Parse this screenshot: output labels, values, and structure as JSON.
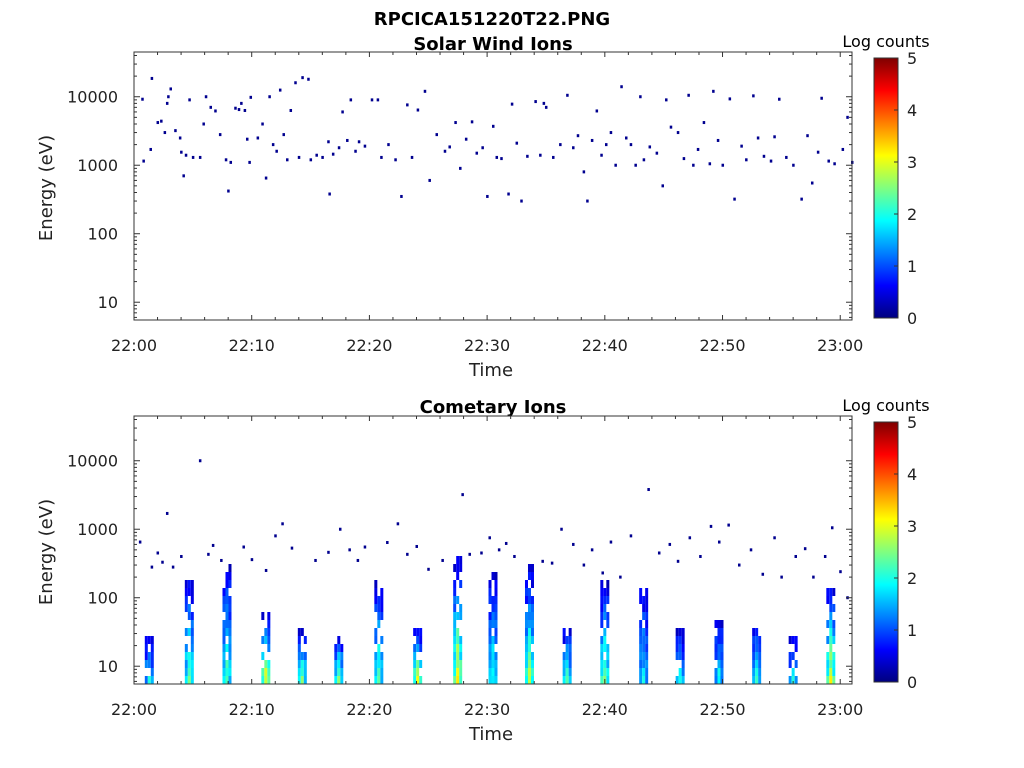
{
  "figure": {
    "title": "RPCICA151220T22.PNG"
  },
  "chart_data": [
    {
      "type": "heatmap",
      "title": "Solar Wind Ions",
      "xlabel": "Time",
      "ylabel": "Energy (eV)",
      "x_ticks": [
        "22:00",
        "22:10",
        "22:20",
        "22:30",
        "22:40",
        "22:50",
        "23:00"
      ],
      "x_range_minutes": [
        0,
        61
      ],
      "y_ticks": [
        "10",
        "100",
        "1000",
        "10000"
      ],
      "y_scale": "log",
      "y_range": [
        5.5,
        45000
      ],
      "colorbar": {
        "label": "Log counts",
        "ticks": [
          "0",
          "1",
          "2",
          "3",
          "4",
          "5"
        ],
        "range": [
          0,
          5
        ],
        "colormap": "jet"
      },
      "points": [
        [
          0.8,
          1150
        ],
        [
          0.7,
          9200
        ],
        [
          1.5,
          18500
        ],
        [
          2.0,
          4200
        ],
        [
          2.3,
          4400
        ],
        [
          2.6,
          3000
        ],
        [
          2.8,
          8000
        ],
        [
          2.9,
          10000
        ],
        [
          3.1,
          13000
        ],
        [
          3.5,
          3200
        ],
        [
          1.4,
          1700
        ],
        [
          3.9,
          2500
        ],
        [
          4.0,
          1550
        ],
        [
          4.2,
          700
        ],
        [
          4.4,
          1400
        ],
        [
          4.7,
          9000
        ],
        [
          5.0,
          1300
        ],
        [
          5.6,
          1300
        ],
        [
          5.9,
          4000
        ],
        [
          6.1,
          10000
        ],
        [
          6.5,
          7000
        ],
        [
          6.9,
          6200
        ],
        [
          7.3,
          2800
        ],
        [
          7.8,
          1200
        ],
        [
          8.0,
          420
        ],
        [
          8.2,
          1100
        ],
        [
          8.6,
          6800
        ],
        [
          8.9,
          6500
        ],
        [
          9.1,
          8000
        ],
        [
          9.4,
          6300
        ],
        [
          9.6,
          2400
        ],
        [
          9.8,
          1100
        ],
        [
          9.9,
          9800
        ],
        [
          10.5,
          2500
        ],
        [
          10.9,
          4000
        ],
        [
          11.2,
          650
        ],
        [
          11.5,
          10000
        ],
        [
          11.8,
          2000
        ],
        [
          12.1,
          1600
        ],
        [
          12.4,
          12500
        ],
        [
          12.7,
          2800
        ],
        [
          13.0,
          1200
        ],
        [
          13.3,
          6300
        ],
        [
          13.7,
          16000
        ],
        [
          14.0,
          1300
        ],
        [
          14.3,
          19000
        ],
        [
          14.8,
          18000
        ],
        [
          15.0,
          1200
        ],
        [
          15.5,
          1400
        ],
        [
          16.0,
          1300
        ],
        [
          16.5,
          2200
        ],
        [
          16.6,
          380
        ],
        [
          16.9,
          1450
        ],
        [
          17.4,
          1800
        ],
        [
          17.7,
          6000
        ],
        [
          18.1,
          2300
        ],
        [
          18.4,
          9000
        ],
        [
          18.8,
          1600
        ],
        [
          19.1,
          2200
        ],
        [
          19.6,
          1900
        ],
        [
          20.2,
          9000
        ],
        [
          20.7,
          9000
        ],
        [
          21.0,
          1300
        ],
        [
          21.6,
          2000
        ],
        [
          22.2,
          1200
        ],
        [
          22.7,
          350
        ],
        [
          23.2,
          7600
        ],
        [
          23.6,
          1300
        ],
        [
          24.1,
          6400
        ],
        [
          24.7,
          12000
        ],
        [
          25.1,
          600
        ],
        [
          25.7,
          2800
        ],
        [
          26.4,
          1600
        ],
        [
          26.8,
          1850
        ],
        [
          27.3,
          4200
        ],
        [
          27.7,
          900
        ],
        [
          28.2,
          2400
        ],
        [
          28.7,
          4300
        ],
        [
          29.1,
          1500
        ],
        [
          29.6,
          1800
        ],
        [
          30.0,
          350
        ],
        [
          30.5,
          3700
        ],
        [
          30.8,
          1300
        ],
        [
          31.2,
          1250
        ],
        [
          31.8,
          380
        ],
        [
          32.1,
          7800
        ],
        [
          32.5,
          2100
        ],
        [
          32.9,
          300
        ],
        [
          33.4,
          1350
        ],
        [
          34.1,
          8500
        ],
        [
          34.5,
          1400
        ],
        [
          34.8,
          8000
        ],
        [
          35.0,
          7000
        ],
        [
          35.6,
          1300
        ],
        [
          36.2,
          2000
        ],
        [
          36.8,
          10500
        ],
        [
          37.3,
          1800
        ],
        [
          37.7,
          2700
        ],
        [
          38.2,
          800
        ],
        [
          38.5,
          300
        ],
        [
          38.9,
          2300
        ],
        [
          39.3,
          6200
        ],
        [
          39.7,
          1400
        ],
        [
          40.1,
          2000
        ],
        [
          40.5,
          3000
        ],
        [
          40.9,
          1000
        ],
        [
          41.4,
          14000
        ],
        [
          41.8,
          2500
        ],
        [
          42.2,
          2000
        ],
        [
          42.6,
          1000
        ],
        [
          43.0,
          10000
        ],
        [
          43.3,
          1200
        ],
        [
          43.8,
          1850
        ],
        [
          44.4,
          1500
        ],
        [
          44.9,
          500
        ],
        [
          45.2,
          9000
        ],
        [
          45.6,
          3600
        ],
        [
          46.2,
          3000
        ],
        [
          46.7,
          1250
        ],
        [
          47.1,
          10500
        ],
        [
          47.5,
          1000
        ],
        [
          47.9,
          1700
        ],
        [
          48.4,
          4200
        ],
        [
          48.9,
          1050
        ],
        [
          49.2,
          12000
        ],
        [
          49.6,
          2300
        ],
        [
          50.0,
          1000
        ],
        [
          50.6,
          9300
        ],
        [
          51.0,
          320
        ],
        [
          51.6,
          1900
        ],
        [
          52.0,
          1200
        ],
        [
          52.6,
          10300
        ],
        [
          53.0,
          2500
        ],
        [
          53.5,
          1350
        ],
        [
          54.1,
          1150
        ],
        [
          54.4,
          2600
        ],
        [
          54.8,
          9200
        ],
        [
          55.4,
          1300
        ],
        [
          56.0,
          1000
        ],
        [
          56.7,
          320
        ],
        [
          57.2,
          2700
        ],
        [
          57.6,
          550
        ],
        [
          58.1,
          1550
        ],
        [
          58.4,
          9500
        ],
        [
          59.0,
          1150
        ],
        [
          59.5,
          1050
        ],
        [
          60.2,
          1700
        ],
        [
          60.6,
          5000
        ],
        [
          61.0,
          1100
        ]
      ]
    },
    {
      "type": "heatmap",
      "title": "Cometary Ions",
      "xlabel": "Time",
      "ylabel": "Energy (eV)",
      "x_ticks": [
        "22:00",
        "22:10",
        "22:20",
        "22:30",
        "22:40",
        "22:50",
        "23:00"
      ],
      "x_range_minutes": [
        0,
        61
      ],
      "y_ticks": [
        "10",
        "100",
        "1000",
        "10000"
      ],
      "y_scale": "log",
      "y_range": [
        5.5,
        45000
      ],
      "colorbar": {
        "label": "Log counts",
        "ticks": [
          "0",
          "1",
          "2",
          "3",
          "4",
          "5"
        ],
        "range": [
          0,
          5
        ],
        "colormap": "jet"
      },
      "bursts": [
        {
          "t": 1.3,
          "top": 30,
          "peak": 1.9
        },
        {
          "t": 4.7,
          "top": 230,
          "peak": 2.3
        },
        {
          "t": 7.9,
          "top": 350,
          "peak": 2.1
        },
        {
          "t": 11.2,
          "top": 70,
          "peak": 3.0
        },
        {
          "t": 14.3,
          "top": 40,
          "peak": 2.4
        },
        {
          "t": 17.4,
          "top": 35,
          "peak": 2.5
        },
        {
          "t": 20.8,
          "top": 230,
          "peak": 2.2
        },
        {
          "t": 24.1,
          "top": 40,
          "peak": 3.2
        },
        {
          "t": 27.5,
          "top": 450,
          "peak": 3.1
        },
        {
          "t": 30.5,
          "top": 300,
          "peak": 1.9
        },
        {
          "t": 33.6,
          "top": 320,
          "peak": 2.6
        },
        {
          "t": 36.8,
          "top": 45,
          "peak": 2.2
        },
        {
          "t": 40.0,
          "top": 200,
          "peak": 2.5
        },
        {
          "t": 43.3,
          "top": 170,
          "peak": 1.6
        },
        {
          "t": 46.4,
          "top": 40,
          "peak": 2.0
        },
        {
          "t": 49.7,
          "top": 60,
          "peak": 1.8
        },
        {
          "t": 52.9,
          "top": 45,
          "peak": 2.3
        },
        {
          "t": 56.0,
          "top": 35,
          "peak": 1.7
        },
        {
          "t": 59.2,
          "top": 180,
          "peak": 3.0
        }
      ],
      "points": [
        [
          0.5,
          650
        ],
        [
          1.5,
          280
        ],
        [
          2.0,
          450
        ],
        [
          2.4,
          330
        ],
        [
          2.8,
          1700
        ],
        [
          3.3,
          280
        ],
        [
          4.0,
          400
        ],
        [
          5.6,
          10000
        ],
        [
          6.3,
          430
        ],
        [
          6.7,
          580
        ],
        [
          7.4,
          350
        ],
        [
          9.3,
          550
        ],
        [
          10.0,
          360
        ],
        [
          11.2,
          250
        ],
        [
          12.0,
          800
        ],
        [
          12.6,
          1200
        ],
        [
          13.4,
          530
        ],
        [
          15.4,
          350
        ],
        [
          16.5,
          460
        ],
        [
          17.5,
          1000
        ],
        [
          18.3,
          500
        ],
        [
          19.0,
          350
        ],
        [
          19.6,
          550
        ],
        [
          21.5,
          640
        ],
        [
          22.4,
          1200
        ],
        [
          23.2,
          430
        ],
        [
          24.0,
          560
        ],
        [
          25.0,
          260
        ],
        [
          26.2,
          350
        ],
        [
          27.9,
          3200
        ],
        [
          28.5,
          430
        ],
        [
          29.5,
          450
        ],
        [
          30.2,
          750
        ],
        [
          31.0,
          500
        ],
        [
          31.6,
          620
        ],
        [
          32.3,
          400
        ],
        [
          34.7,
          340
        ],
        [
          35.5,
          320
        ],
        [
          36.3,
          1000
        ],
        [
          37.3,
          600
        ],
        [
          38.2,
          300
        ],
        [
          38.9,
          500
        ],
        [
          39.8,
          230
        ],
        [
          40.5,
          650
        ],
        [
          41.3,
          200
        ],
        [
          42.2,
          800
        ],
        [
          43.7,
          3800
        ],
        [
          44.6,
          450
        ],
        [
          45.5,
          600
        ],
        [
          46.2,
          340
        ],
        [
          47.2,
          750
        ],
        [
          48.1,
          400
        ],
        [
          49.0,
          1100
        ],
        [
          49.7,
          650
        ],
        [
          50.5,
          1150
        ],
        [
          51.4,
          300
        ],
        [
          52.4,
          500
        ],
        [
          53.4,
          220
        ],
        [
          54.4,
          750
        ],
        [
          55.0,
          200
        ],
        [
          56.2,
          400
        ],
        [
          57.0,
          520
        ],
        [
          57.7,
          200
        ],
        [
          58.7,
          400
        ],
        [
          59.3,
          1050
        ],
        [
          60.0,
          240
        ],
        [
          60.6,
          100
        ]
      ]
    }
  ]
}
